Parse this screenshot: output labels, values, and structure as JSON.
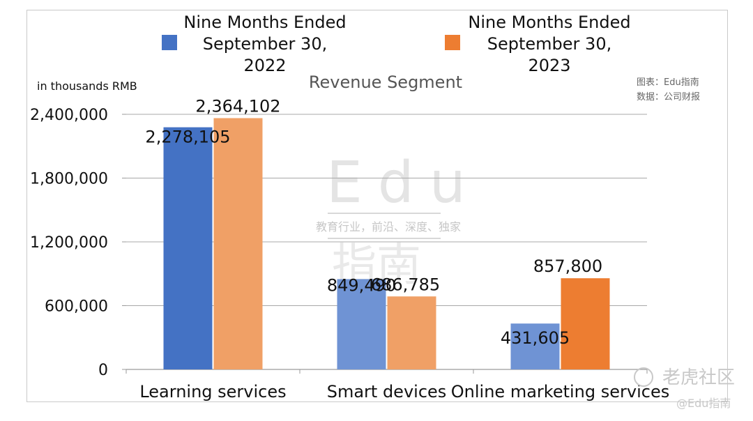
{
  "chart_data": {
    "type": "bar",
    "title": "Revenue Segment",
    "ylabel": "in thousands RMB",
    "categories": [
      "Learning services",
      "Smart devices",
      "Online marketing services"
    ],
    "series": [
      {
        "name": "Nine Months Ended September 30, 2022",
        "values": [
          2278105,
          849490,
          431605
        ],
        "labels": [
          "2,278,105",
          "849,490",
          "431,605"
        ]
      },
      {
        "name": "Nine Months Ended September 30, 2023",
        "values": [
          2364102,
          686785,
          857800
        ],
        "labels": [
          "2,364,102",
          "686,785",
          "857,800"
        ]
      }
    ],
    "ylim": [
      0,
      2400000
    ],
    "yticks": [
      0,
      600000,
      1200000,
      1800000,
      2400000
    ],
    "ytick_labels": [
      "0",
      "600,000",
      "1,200,000",
      "1,800,000",
      "2,400,000"
    ],
    "grid": true,
    "legend_position": "top",
    "colors": {
      "series_2022": "#4472C4",
      "series_2022_light": "#6F93D4",
      "series_2023": "#F0A066",
      "series_2023_dark": "#ED7D31"
    }
  },
  "legend": {
    "series_2022": [
      "Nine Months Ended",
      "September 30,",
      "2022"
    ],
    "series_2023": [
      "Nine Months Ended",
      "September 30,",
      "2023"
    ]
  },
  "credits": {
    "chart_by": "图表：Edu指南",
    "data_from": "数据：公司财报"
  },
  "watermark": {
    "main": "Edu",
    "tagline": "教育行业，前沿、深度、独家",
    "cn": "指南",
    "corner_brand": "老虎社区",
    "corner_handle": "@Edu指南"
  }
}
